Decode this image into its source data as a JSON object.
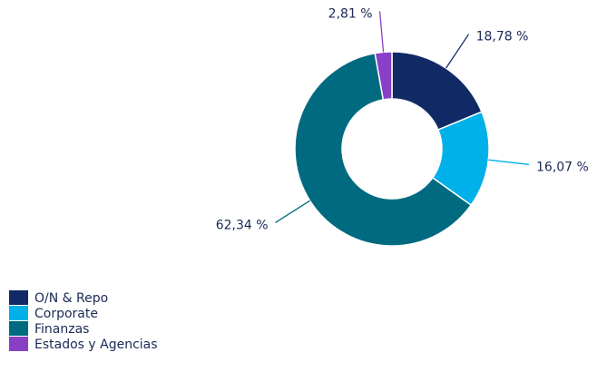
{
  "chart_data": {
    "type": "donut",
    "categories": [
      "O/N & Repo",
      "Corporate",
      "Finanzas",
      "Estados y Agencias"
    ],
    "values": [
      18.78,
      16.07,
      62.34,
      2.81
    ],
    "value_labels": [
      "18,78 %",
      "16,07 %",
      "62,34 %",
      "2,81 %"
    ],
    "colors": [
      "#112a66",
      "#00b0e8",
      "#006b80",
      "#8a3fc7"
    ],
    "legend": "bottom-left"
  }
}
